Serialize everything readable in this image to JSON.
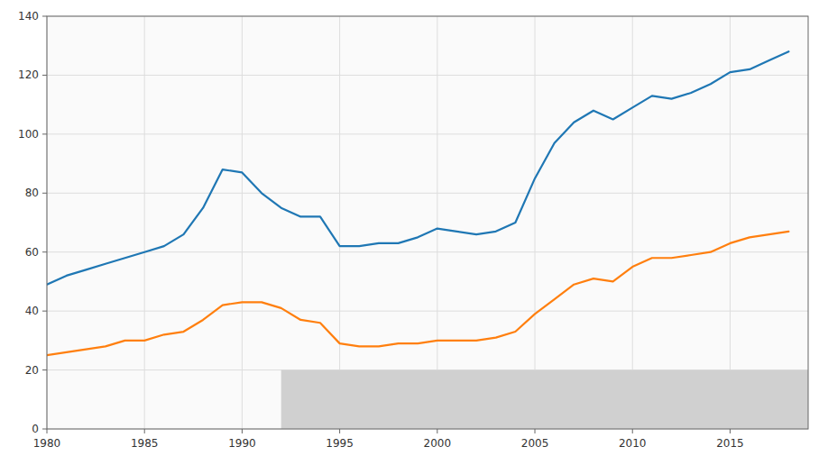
{
  "chart_data": {
    "type": "line",
    "x": [
      1980,
      1981,
      1982,
      1983,
      1984,
      1985,
      1986,
      1987,
      1988,
      1989,
      1990,
      1991,
      1992,
      1993,
      1994,
      1995,
      1996,
      1997,
      1998,
      1999,
      2000,
      2001,
      2002,
      2003,
      2004,
      2005,
      2006,
      2007,
      2008,
      2009,
      2010,
      2011,
      2012,
      2013,
      2014,
      2015,
      2016,
      2017,
      2018
    ],
    "series": [
      {
        "values": [
          49,
          52,
          54,
          56,
          58,
          60,
          62,
          66,
          75,
          88,
          87,
          80,
          75,
          72,
          72,
          62,
          62,
          63,
          63,
          65,
          68,
          67,
          66,
          67,
          70,
          85,
          97,
          104,
          108,
          105,
          109,
          113,
          112,
          114,
          117,
          121,
          122,
          125,
          128
        ]
      },
      {
        "values": [
          25,
          26,
          27,
          28,
          30,
          30,
          32,
          33,
          37,
          42,
          43,
          43,
          41,
          37,
          36,
          29,
          28,
          28,
          29,
          29,
          30,
          30,
          30,
          31,
          33,
          39,
          44,
          49,
          51,
          50,
          55,
          58,
          58,
          59,
          60,
          63,
          65,
          66,
          67
        ]
      }
    ],
    "shaded_region": {
      "x": 1992,
      "y": 0,
      "width": 27,
      "height": 20
    },
    "xlim": [
      1980,
      2019
    ],
    "ylim": [
      0,
      140
    ],
    "xticks": [
      1980,
      1985,
      1990,
      1995,
      2000,
      2005,
      2010,
      2015
    ],
    "yticks": [
      0,
      20,
      40,
      60,
      80,
      100,
      120,
      140
    ],
    "grid": true
  }
}
